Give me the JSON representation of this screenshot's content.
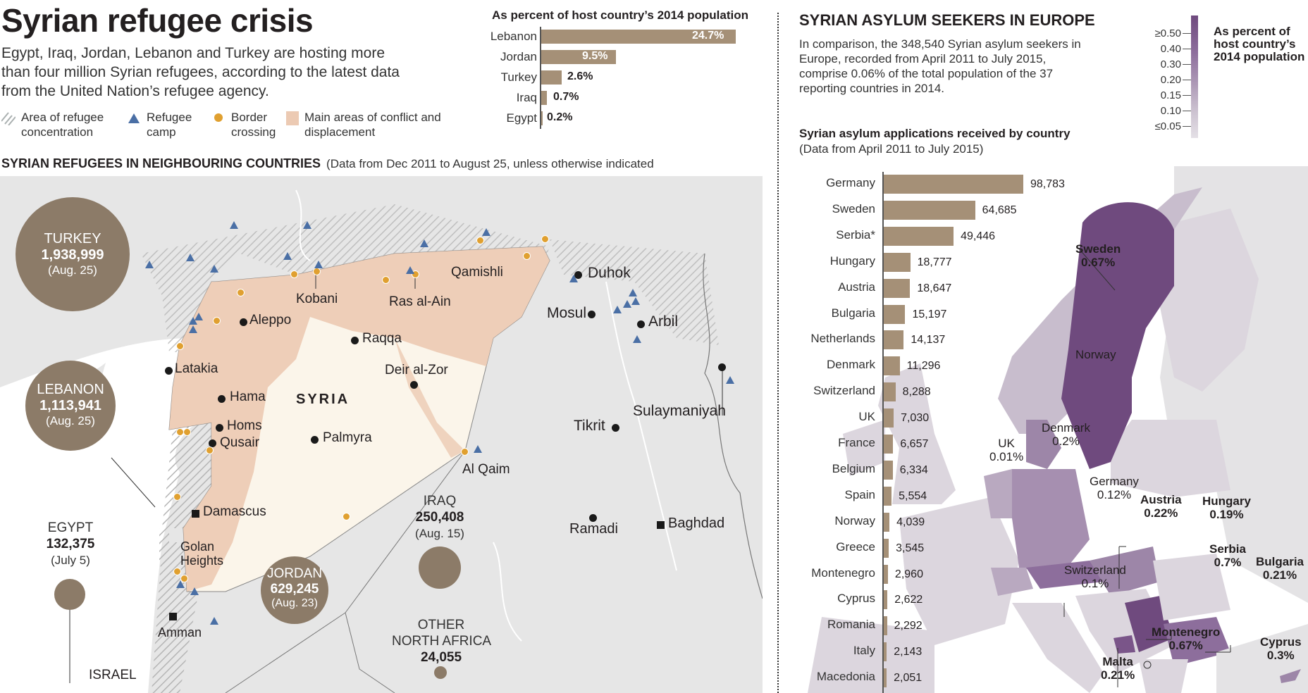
{
  "header": {
    "title": "Syrian refugee crisis",
    "intro": "Egypt, Iraq, Jordan, Lebanon and Turkey are hosting more than four million Syrian refugees, according to the latest data from the United Nation’s refugee agency."
  },
  "legend": [
    {
      "icon": "hatch-pattern-icon",
      "label": "Area of refugee concentration"
    },
    {
      "icon": "triangle-icon",
      "label": "Refugee camp",
      "color": "#4a6fa5"
    },
    {
      "icon": "circle-icon",
      "label": "Border crossing",
      "color": "#e0a030"
    },
    {
      "icon": "square-swatch-icon",
      "label": "Main areas of conflict and displacement",
      "color": "#eccab3"
    }
  ],
  "neighbours": {
    "title": "SYRIAN REFUGEES IN NEIGHBOURING COUNTRIES",
    "subtitle": "(Data from Dec 2011 to August 25, unless otherwise indicated",
    "countries": [
      {
        "name": "TURKEY",
        "value": "1,938,999",
        "date": "(Aug. 25)"
      },
      {
        "name": "LEBANON",
        "value": "1,113,941",
        "date": "(Aug. 25)"
      },
      {
        "name": "EGYPT",
        "value": "132,375",
        "date": "(July 5)"
      },
      {
        "name": "JORDAN",
        "value": "629,245",
        "date": "(Aug. 23)"
      },
      {
        "name": "IRAQ",
        "value": "250,408",
        "date": "(Aug. 15)"
      },
      {
        "name": "OTHER NORTH AFRICA",
        "line1": "OTHER",
        "line2": "NORTH AFRICA",
        "value": "24,055"
      }
    ],
    "country_label": "SYRIA",
    "cities": [
      "Aleppo",
      "Kobani",
      "Raqqa",
      "Ras al-Ain",
      "Qamishli",
      "Latakia",
      "Hama",
      "Homs",
      "Qusair",
      "Palmyra",
      "Deir al-Zor",
      "Al Qaim",
      "Damascus",
      "Golan",
      "Heights",
      "Amman",
      "ISRAEL",
      "Duhok",
      "Mosul",
      "Arbil",
      "Sulaymaniyah",
      "Tikrit",
      "Ramadi",
      "Baghdad"
    ]
  },
  "host_pct": {
    "title": "As percent of host country’s 2014 population",
    "rows": [
      {
        "label": "Lebanon",
        "value": "24.7%",
        "num": 24.7
      },
      {
        "label": "Jordan",
        "value": "9.5%",
        "num": 9.5
      },
      {
        "label": "Turkey",
        "value": "2.6%",
        "num": 2.6
      },
      {
        "label": "Iraq",
        "value": "0.7%",
        "num": 0.7
      },
      {
        "label": "Egypt",
        "value": "0.2%",
        "num": 0.2
      }
    ]
  },
  "europe": {
    "title": "SYRIAN ASYLUM SEEKERS IN EUROPE",
    "intro": "In comparison, the 348,540 Syrian asylum seekers in Europe, recorded from April 2011 to July 2015, comprise 0.06% of the total population of the 37 reporting countries in 2014.",
    "chart_title": "Syrian asylum applications received by country",
    "chart_subtitle": "(Data from April 2011 to July 2015)",
    "scale": {
      "title_l1": "As percent of",
      "title_l2": "host country’s",
      "title_l3": "2014 population",
      "ticks": [
        "≥0.50",
        "0.40",
        "0.30",
        "0.20",
        "0.15",
        "0.10",
        "≤0.05"
      ]
    },
    "map_labels": [
      {
        "name": "Sweden",
        "pct": "0.67%",
        "bold": true
      },
      {
        "name": "Norway",
        "pct": "",
        "bold": false
      },
      {
        "name": "Denmark",
        "pct": "0.2%",
        "bold": false
      },
      {
        "name": "UK",
        "pct": "0.01%",
        "bold": false
      },
      {
        "name": "Germany",
        "pct": "0.12%",
        "bold": false
      },
      {
        "name": "Austria",
        "pct": "0.22%",
        "bold": true
      },
      {
        "name": "Hungary",
        "pct": "0.19%",
        "bold": true
      },
      {
        "name": "Switzerland",
        "pct": "0.1%",
        "bold": false
      },
      {
        "name": "Serbia",
        "pct": "0.7%",
        "bold": true
      },
      {
        "name": "Bulgaria",
        "pct": "0.21%",
        "bold": true
      },
      {
        "name": "Montenegro",
        "pct": "0.67%",
        "bold": true
      },
      {
        "name": "Malta",
        "pct": "0.21%",
        "bold": true
      },
      {
        "name": "Cyprus",
        "pct": "0.3%",
        "bold": true
      }
    ]
  },
  "chart_data": [
    {
      "type": "bar",
      "title": "As percent of host country’s 2014 population",
      "categories": [
        "Lebanon",
        "Jordan",
        "Turkey",
        "Iraq",
        "Egypt"
      ],
      "values": [
        24.7,
        9.5,
        2.6,
        0.7,
        0.2
      ],
      "xlabel": "",
      "ylabel": "",
      "orientation": "horizontal"
    },
    {
      "type": "bar",
      "title": "Syrian asylum applications received by country",
      "subtitle": "(Data from April 2011 to July 2015)",
      "categories": [
        "Germany",
        "Sweden",
        "Serbia*",
        "Hungary",
        "Austria",
        "Bulgaria",
        "Netherlands",
        "Denmark",
        "Switzerland",
        "UK",
        "France",
        "Belgium",
        "Spain",
        "Norway",
        "Greece",
        "Montenegro",
        "Cyprus",
        "Romania",
        "Italy",
        "Macedonia"
      ],
      "values": [
        98783,
        64685,
        49446,
        18777,
        18647,
        15197,
        14137,
        11296,
        8288,
        7030,
        6657,
        6334,
        5554,
        4039,
        3545,
        2960,
        2622,
        2292,
        2143,
        2051
      ],
      "labels": [
        "98,783",
        "64,685",
        "49,446",
        "18,777",
        "18,647",
        "15,197",
        "14,137",
        "11,296",
        "8,288",
        "7,030",
        "6,657",
        "6,334",
        "5,554",
        "4,039",
        "3,545",
        "2,960",
        "2,622",
        "2,292",
        "2,143",
        "2,051"
      ],
      "orientation": "horizontal"
    }
  ],
  "colors": {
    "bar": "#a59077",
    "bubble": "#8c7b68",
    "conflict": "#eccab3",
    "syria": "#fbf5ea",
    "land": "#e6e6e6",
    "camp": "#4a6fa5",
    "crossing": "#e0a030",
    "purple_dark": "#6f4a7e",
    "purple_light": "#dcd6de"
  }
}
